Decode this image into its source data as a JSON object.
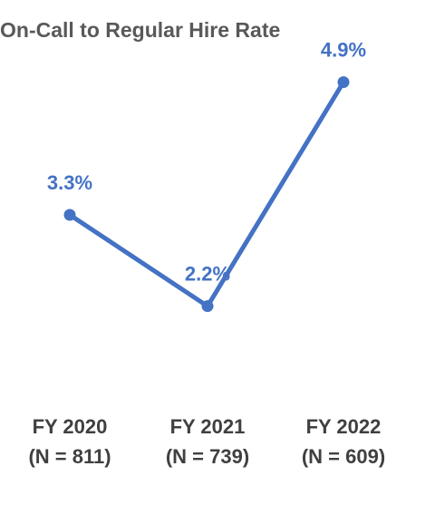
{
  "chart_data": {
    "type": "line",
    "title": "On-Call to Regular Hire Rate",
    "categories": [
      [
        "FY 2020",
        "(N = 811)"
      ],
      [
        "FY 2021",
        "(N = 739)"
      ],
      [
        "FY 2022",
        "(N = 609)"
      ]
    ],
    "series": [
      {
        "values": [
          3.3,
          2.2,
          4.9
        ],
        "labels": [
          "3.3%",
          "2.2%",
          "4.9%"
        ]
      }
    ],
    "xlabel": "",
    "ylabel": "",
    "grid": false,
    "legend": "none",
    "colors": {
      "line": "#4472C4",
      "title": "#595959",
      "axis_text": "#404040"
    }
  }
}
